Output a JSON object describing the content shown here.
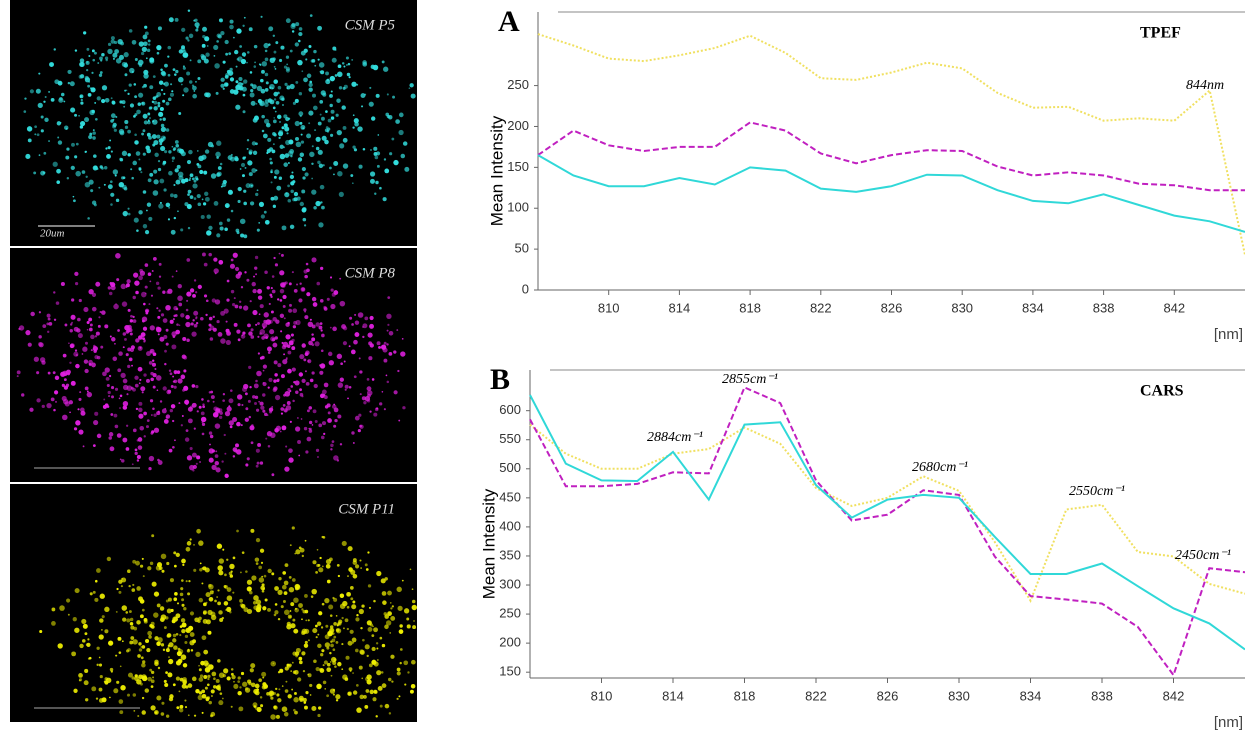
{
  "images": [
    {
      "label": "CSM P5",
      "color": "#33e0e0",
      "scale": "20um"
    },
    {
      "label": "CSM P8",
      "color": "#e020e0"
    },
    {
      "label": "CSM P11",
      "color": "#f0f000"
    }
  ],
  "chart_data": [
    {
      "type": "line",
      "panel": "A",
      "label": "TPEF",
      "y_label": "Mean Intensity",
      "x_unit": "[nm]",
      "annotations": [
        "844nm"
      ],
      "x": [
        806,
        808,
        810,
        812,
        814,
        816,
        818,
        820,
        822,
        824,
        826,
        828,
        830,
        832,
        834,
        836,
        838,
        840,
        842,
        844,
        846
      ],
      "xlim": [
        806,
        846
      ],
      "xticks": [
        810,
        814,
        818,
        822,
        826,
        830,
        834,
        838,
        842
      ],
      "ylim": [
        0,
        340
      ],
      "yticks": [
        0,
        50,
        100,
        150,
        200,
        250
      ],
      "series": [
        {
          "color": "#f0e060",
          "style": "dotted",
          "values": [
            313,
            299,
            283,
            280,
            287,
            296,
            311,
            290,
            259,
            257,
            266,
            278,
            271,
            241,
            223,
            224,
            207,
            210,
            207,
            244,
            43
          ]
        },
        {
          "color": "#c020c0",
          "style": "dashed",
          "values": [
            165,
            195,
            177,
            170,
            175,
            175,
            205,
            195,
            167,
            155,
            165,
            171,
            170,
            151,
            140,
            144,
            140,
            130,
            128,
            122,
            122
          ]
        },
        {
          "color": "#30d8d8",
          "style": "solid",
          "values": [
            165,
            140,
            127,
            127,
            137,
            129,
            150,
            146,
            124,
            120,
            127,
            141,
            140,
            122,
            109,
            106,
            117,
            104,
            91,
            84,
            71
          ]
        }
      ]
    },
    {
      "type": "line",
      "panel": "B",
      "label": "CARS",
      "y_label": "Mean Intensity",
      "x_unit": "[nm]",
      "annotations": [
        "2855cm⁻¹",
        "2884cm⁻¹",
        "2680cm⁻¹",
        "2550cm⁻¹",
        "2450cm⁻¹"
      ],
      "x": [
        806,
        808,
        810,
        812,
        814,
        816,
        818,
        820,
        822,
        824,
        826,
        828,
        830,
        832,
        834,
        836,
        838,
        840,
        842,
        844,
        846
      ],
      "xlim": [
        806,
        846
      ],
      "xticks": [
        810,
        814,
        818,
        822,
        826,
        830,
        834,
        838,
        842
      ],
      "ylim": [
        140,
        670
      ],
      "yticks": [
        150,
        200,
        250,
        300,
        350,
        400,
        450,
        500,
        550,
        600
      ],
      "series": [
        {
          "color": "#f0e060",
          "style": "dotted",
          "values": [
            576,
            526,
            500,
            500,
            526,
            534,
            571,
            543,
            467,
            436,
            450,
            487,
            462,
            374,
            273,
            430,
            438,
            357,
            349,
            302,
            285
          ]
        },
        {
          "color": "#c020c0",
          "style": "dashed",
          "values": [
            585,
            470,
            470,
            474,
            494,
            492,
            640,
            613,
            480,
            411,
            421,
            463,
            455,
            349,
            281,
            275,
            268,
            228,
            145,
            329,
            322
          ]
        },
        {
          "color": "#30d8d8",
          "style": "solid",
          "values": [
            627,
            509,
            480,
            479,
            529,
            447,
            576,
            580,
            472,
            416,
            447,
            455,
            450,
            383,
            319,
            319,
            337,
            298,
            260,
            234,
            189
          ]
        }
      ]
    }
  ]
}
